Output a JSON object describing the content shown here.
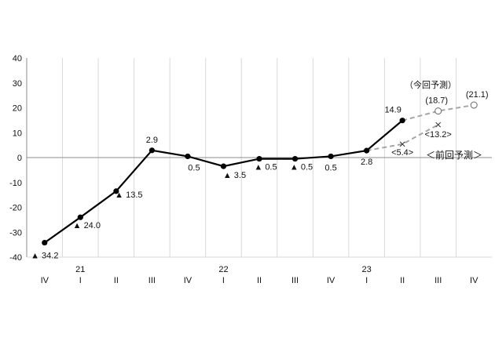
{
  "chart_data": {
    "type": "line",
    "categories": [
      "IV",
      "I",
      "II",
      "III",
      "IV",
      "I",
      "II",
      "III",
      "IV",
      "I",
      "II",
      "III",
      "IV"
    ],
    "year_labels": [
      {
        "index": 1,
        "label": "21"
      },
      {
        "index": 5,
        "label": "22"
      },
      {
        "index": 9,
        "label": "23"
      }
    ],
    "ylim": [
      -40,
      40
    ],
    "yticks": [
      "40",
      "30",
      "20",
      "10",
      "0",
      "-10",
      "-20",
      "-30",
      "-40"
    ],
    "grid": "vertical",
    "series": [
      {
        "values": [
          -34.2,
          -24.0,
          -13.5,
          2.9,
          0.5,
          -3.5,
          -0.5,
          -0.5,
          0.5,
          2.8,
          14.9,
          null,
          null
        ],
        "labels": [
          "▲ 34.2",
          "▲ 24.0",
          "▲ 13.5",
          "2.9",
          "0.5",
          "▲ 3.5",
          "▲ 0.5",
          "▲ 0.5",
          "0.5",
          "2.8",
          "14.9",
          "",
          ""
        ],
        "color": "#000000",
        "style": "solid"
      },
      {
        "values": [
          null,
          null,
          null,
          null,
          null,
          null,
          null,
          null,
          null,
          null,
          null,
          18.7,
          21.1
        ],
        "labels": [
          "",
          "",
          "",
          "",
          "",
          "",
          "",
          "",
          "",
          "",
          "",
          "(18.7)",
          "(21.1)"
        ],
        "color": "#a6a6a6",
        "style": "dashed",
        "marker": "open-circle"
      },
      {
        "values": [
          null,
          null,
          null,
          null,
          null,
          null,
          null,
          null,
          null,
          null,
          5.4,
          13.2,
          null
        ],
        "labels": [
          "",
          "",
          "",
          "",
          "",
          "",
          "",
          "",
          "",
          "",
          "<5.4>",
          "<13.2>",
          ""
        ],
        "color": "#a6a6a6",
        "style": "dashed",
        "marker": "x"
      }
    ],
    "annotations": {
      "current_forecast": "（今回予測）",
      "previous_forecast": "＜前回予測＞"
    }
  }
}
